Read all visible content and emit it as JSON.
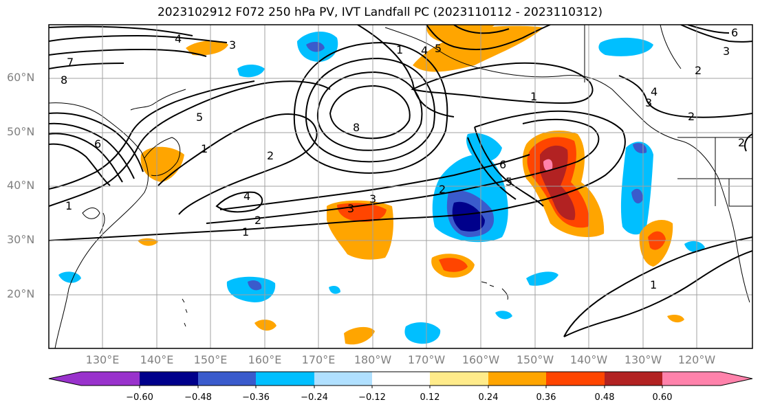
{
  "title": "2023102912 F072 250 hPa PV, IVT Landfall PC (2023110112 - 2023110312)",
  "lat_labels": [
    "60°N",
    "50°N",
    "40°N",
    "30°N",
    "20°N"
  ],
  "lon_labels": [
    "130°E",
    "140°E",
    "150°E",
    "160°E",
    "170°E",
    "180°W",
    "170°W",
    "160°W",
    "150°W",
    "140°W",
    "130°W",
    "120°W"
  ],
  "colorbar": {
    "ticks": [
      "−0.60",
      "−0.48",
      "−0.36",
      "−0.24",
      "−0.12",
      "0.12",
      "0.24",
      "0.36",
      "0.48",
      "0.60"
    ],
    "colors": [
      "#9932cc",
      "#00008b",
      "#3a5bcc",
      "#00bfff",
      "#b0e0ff",
      "#ffffff",
      "#ffeb8a",
      "#ffa500",
      "#ff4500",
      "#b22222",
      "#ff82ab"
    ]
  },
  "contour_labels": [
    "4",
    "3",
    "7",
    "8",
    "5",
    "6",
    "1",
    "2",
    "4",
    "3",
    "2",
    "1",
    "1",
    "2",
    "3",
    "4",
    "5",
    "6",
    "8",
    "1",
    "2",
    "3",
    "4",
    "1",
    "6",
    "5",
    "3",
    "2",
    "2",
    "1"
  ],
  "colors": {
    "grid": "#a0a0a0",
    "contour": "#000000",
    "coast": "#000000"
  }
}
